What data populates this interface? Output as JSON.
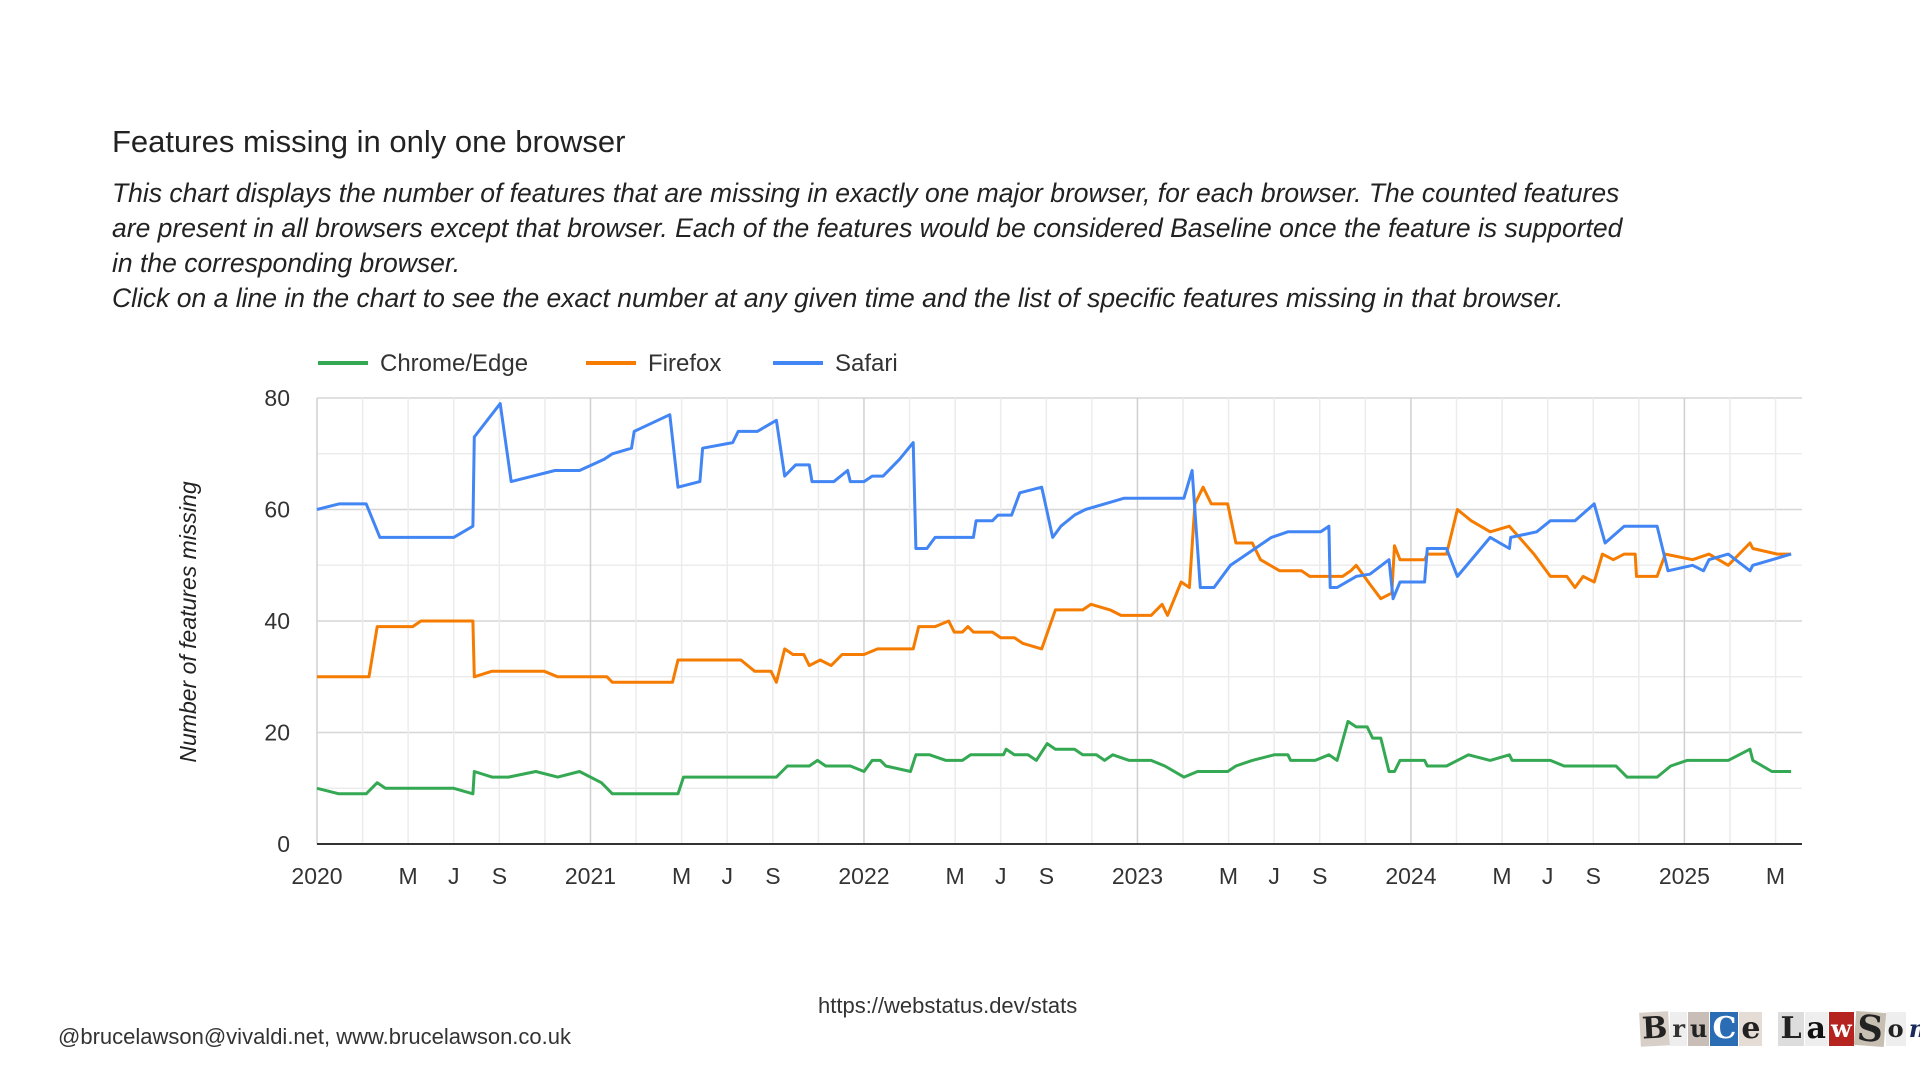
{
  "title": "Features missing in only one browser",
  "description": [
    "This chart displays the number of features that are missing in exactly one major browser, for each browser. The counted features",
    "are present in all browsers except that browser. Each of the features would be considered Baseline once the feature is supported",
    "in the corresponding browser.",
    "Click on a line in the chart to see the exact number at any given time and the list of specific features missing in that browser."
  ],
  "footer": {
    "url": "https://webstatus.dev/stats",
    "contact": "@brucelawson@vivaldi.net,  www.brucelawson.co.uk",
    "logo_text": "Bruce Lawson"
  },
  "chart_data": {
    "type": "line",
    "title": "Features missing in only one browser",
    "xlabel": "",
    "ylabel": "Number of features missing",
    "ylim": [
      0,
      80
    ],
    "xlim": [
      2020.0,
      2025.43
    ],
    "yticks": [
      "0",
      "20",
      "40",
      "60",
      "80"
    ],
    "xticks": [
      {
        "x": 2020.0,
        "label": "2020"
      },
      {
        "x": 2020.333,
        "label": "M"
      },
      {
        "x": 2020.5,
        "label": "J"
      },
      {
        "x": 2020.667,
        "label": "S"
      },
      {
        "x": 2021.0,
        "label": "2021"
      },
      {
        "x": 2021.333,
        "label": "M"
      },
      {
        "x": 2021.5,
        "label": "J"
      },
      {
        "x": 2021.667,
        "label": "S"
      },
      {
        "x": 2022.0,
        "label": "2022"
      },
      {
        "x": 2022.333,
        "label": "M"
      },
      {
        "x": 2022.5,
        "label": "J"
      },
      {
        "x": 2022.667,
        "label": "S"
      },
      {
        "x": 2023.0,
        "label": "2023"
      },
      {
        "x": 2023.333,
        "label": "M"
      },
      {
        "x": 2023.5,
        "label": "J"
      },
      {
        "x": 2023.667,
        "label": "S"
      },
      {
        "x": 2024.0,
        "label": "2024"
      },
      {
        "x": 2024.333,
        "label": "M"
      },
      {
        "x": 2024.5,
        "label": "J"
      },
      {
        "x": 2024.667,
        "label": "S"
      },
      {
        "x": 2025.0,
        "label": "2025"
      },
      {
        "x": 2025.333,
        "label": "M"
      }
    ],
    "legend_position": "top-left",
    "grid": true,
    "series": [
      {
        "name": "Chrome/Edge",
        "color": "#34a853",
        "points": [
          [
            2020.0,
            10
          ],
          [
            2020.08,
            9
          ],
          [
            2020.18,
            9
          ],
          [
            2020.22,
            11
          ],
          [
            2020.25,
            10
          ],
          [
            2020.5,
            10
          ],
          [
            2020.57,
            9
          ],
          [
            2020.575,
            13
          ],
          [
            2020.64,
            12
          ],
          [
            2020.7,
            12
          ],
          [
            2020.8,
            13
          ],
          [
            2020.88,
            12
          ],
          [
            2020.96,
            13
          ],
          [
            2021.04,
            11
          ],
          [
            2021.08,
            9
          ],
          [
            2021.32,
            9
          ],
          [
            2021.34,
            12
          ],
          [
            2021.68,
            12
          ],
          [
            2021.72,
            14
          ],
          [
            2021.8,
            14
          ],
          [
            2021.83,
            15
          ],
          [
            2021.86,
            14
          ],
          [
            2021.95,
            14
          ],
          [
            2022.0,
            13
          ],
          [
            2022.03,
            15
          ],
          [
            2022.06,
            15
          ],
          [
            2022.08,
            14
          ],
          [
            2022.17,
            13
          ],
          [
            2022.19,
            16
          ],
          [
            2022.24,
            16
          ],
          [
            2022.3,
            15
          ],
          [
            2022.36,
            15
          ],
          [
            2022.39,
            16
          ],
          [
            2022.51,
            16
          ],
          [
            2022.52,
            17
          ],
          [
            2022.55,
            16
          ],
          [
            2022.6,
            16
          ],
          [
            2022.63,
            15
          ],
          [
            2022.67,
            18
          ],
          [
            2022.7,
            17
          ],
          [
            2022.77,
            17
          ],
          [
            2022.8,
            16
          ],
          [
            2022.85,
            16
          ],
          [
            2022.88,
            15
          ],
          [
            2022.91,
            16
          ],
          [
            2022.97,
            15
          ],
          [
            2023.05,
            15
          ],
          [
            2023.1,
            14
          ],
          [
            2023.17,
            12
          ],
          [
            2023.22,
            13
          ],
          [
            2023.33,
            13
          ],
          [
            2023.36,
            14
          ],
          [
            2023.42,
            15
          ],
          [
            2023.5,
            16
          ],
          [
            2023.55,
            16
          ],
          [
            2023.56,
            15
          ],
          [
            2023.65,
            15
          ],
          [
            2023.7,
            16
          ],
          [
            2023.73,
            15
          ],
          [
            2023.77,
            22
          ],
          [
            2023.8,
            21
          ],
          [
            2023.84,
            21
          ],
          [
            2023.86,
            19
          ],
          [
            2023.89,
            19
          ],
          [
            2023.92,
            13
          ],
          [
            2023.94,
            13
          ],
          [
            2023.96,
            15
          ],
          [
            2024.05,
            15
          ],
          [
            2024.06,
            14
          ],
          [
            2024.13,
            14
          ],
          [
            2024.21,
            16
          ],
          [
            2024.29,
            15
          ],
          [
            2024.36,
            16
          ],
          [
            2024.37,
            15
          ],
          [
            2024.51,
            15
          ],
          [
            2024.56,
            14
          ],
          [
            2024.75,
            14
          ],
          [
            2024.79,
            12
          ],
          [
            2024.9,
            12
          ],
          [
            2024.95,
            14
          ],
          [
            2025.01,
            15
          ],
          [
            2025.16,
            15
          ],
          [
            2025.24,
            17
          ],
          [
            2025.25,
            15
          ],
          [
            2025.32,
            13
          ],
          [
            2025.39,
            13
          ]
        ]
      },
      {
        "name": "Firefox",
        "color": "#f57c00",
        "points": [
          [
            2020.0,
            30
          ],
          [
            2020.19,
            30
          ],
          [
            2020.22,
            39
          ],
          [
            2020.35,
            39
          ],
          [
            2020.38,
            40
          ],
          [
            2020.57,
            40
          ],
          [
            2020.575,
            30
          ],
          [
            2020.64,
            31
          ],
          [
            2020.83,
            31
          ],
          [
            2020.88,
            30
          ],
          [
            2021.06,
            30
          ],
          [
            2021.08,
            29
          ],
          [
            2021.3,
            29
          ],
          [
            2021.32,
            33
          ],
          [
            2021.55,
            33
          ],
          [
            2021.6,
            31
          ],
          [
            2021.66,
            31
          ],
          [
            2021.68,
            29
          ],
          [
            2021.71,
            35
          ],
          [
            2021.74,
            34
          ],
          [
            2021.78,
            34
          ],
          [
            2021.8,
            32
          ],
          [
            2021.84,
            33
          ],
          [
            2021.88,
            32
          ],
          [
            2021.92,
            34
          ],
          [
            2022.0,
            34
          ],
          [
            2022.05,
            35
          ],
          [
            2022.18,
            35
          ],
          [
            2022.2,
            39
          ],
          [
            2022.26,
            39
          ],
          [
            2022.31,
            40
          ],
          [
            2022.33,
            38
          ],
          [
            2022.36,
            38
          ],
          [
            2022.38,
            39
          ],
          [
            2022.4,
            38
          ],
          [
            2022.47,
            38
          ],
          [
            2022.5,
            37
          ],
          [
            2022.55,
            37
          ],
          [
            2022.58,
            36
          ],
          [
            2022.65,
            35
          ],
          [
            2022.7,
            42
          ],
          [
            2022.8,
            42
          ],
          [
            2022.83,
            43
          ],
          [
            2022.9,
            42
          ],
          [
            2022.94,
            41
          ],
          [
            2023.05,
            41
          ],
          [
            2023.09,
            43
          ],
          [
            2023.11,
            41
          ],
          [
            2023.16,
            47
          ],
          [
            2023.19,
            46
          ],
          [
            2023.21,
            61
          ],
          [
            2023.24,
            64
          ],
          [
            2023.27,
            61
          ],
          [
            2023.33,
            61
          ],
          [
            2023.36,
            54
          ],
          [
            2023.42,
            54
          ],
          [
            2023.45,
            51
          ],
          [
            2023.52,
            49
          ],
          [
            2023.6,
            49
          ],
          [
            2023.63,
            48
          ],
          [
            2023.75,
            48
          ],
          [
            2023.78,
            49
          ],
          [
            2023.8,
            50
          ],
          [
            2023.85,
            46.6
          ],
          [
            2023.89,
            44
          ],
          [
            2023.93,
            45
          ],
          [
            2023.94,
            53.5
          ],
          [
            2023.96,
            51
          ],
          [
            2024.05,
            51
          ],
          [
            2024.06,
            52
          ],
          [
            2024.13,
            52
          ],
          [
            2024.17,
            60
          ],
          [
            2024.22,
            58
          ],
          [
            2024.29,
            56
          ],
          [
            2024.36,
            57
          ],
          [
            2024.45,
            52
          ],
          [
            2024.51,
            48
          ],
          [
            2024.57,
            48
          ],
          [
            2024.6,
            46
          ],
          [
            2024.63,
            48
          ],
          [
            2024.67,
            47
          ],
          [
            2024.7,
            52
          ],
          [
            2024.74,
            51
          ],
          [
            2024.78,
            52
          ],
          [
            2024.82,
            52
          ],
          [
            2024.825,
            48
          ],
          [
            2024.9,
            48
          ],
          [
            2024.93,
            52
          ],
          [
            2025.03,
            51
          ],
          [
            2025.09,
            52
          ],
          [
            2025.16,
            50
          ],
          [
            2025.24,
            54
          ],
          [
            2025.25,
            53
          ],
          [
            2025.34,
            52
          ],
          [
            2025.39,
            52
          ]
        ]
      },
      {
        "name": "Safari",
        "color": "#4285f4",
        "points": [
          [
            2020.0,
            60
          ],
          [
            2020.08,
            61
          ],
          [
            2020.18,
            61
          ],
          [
            2020.23,
            55
          ],
          [
            2020.5,
            55
          ],
          [
            2020.57,
            57
          ],
          [
            2020.575,
            73
          ],
          [
            2020.67,
            79
          ],
          [
            2020.71,
            65
          ],
          [
            2020.87,
            67
          ],
          [
            2020.96,
            67
          ],
          [
            2021.05,
            69
          ],
          [
            2021.08,
            70
          ],
          [
            2021.15,
            71
          ],
          [
            2021.16,
            74
          ],
          [
            2021.29,
            77
          ],
          [
            2021.32,
            64
          ],
          [
            2021.4,
            65
          ],
          [
            2021.41,
            71
          ],
          [
            2021.52,
            72
          ],
          [
            2021.54,
            74
          ],
          [
            2021.61,
            74
          ],
          [
            2021.68,
            76
          ],
          [
            2021.71,
            66
          ],
          [
            2021.75,
            68
          ],
          [
            2021.8,
            68
          ],
          [
            2021.81,
            65
          ],
          [
            2021.89,
            65
          ],
          [
            2021.94,
            67
          ],
          [
            2021.95,
            65
          ],
          [
            2022.0,
            65
          ],
          [
            2022.03,
            66
          ],
          [
            2022.07,
            66
          ],
          [
            2022.13,
            69
          ],
          [
            2022.18,
            72
          ],
          [
            2022.19,
            53
          ],
          [
            2022.23,
            53
          ],
          [
            2022.26,
            55
          ],
          [
            2022.4,
            55
          ],
          [
            2022.41,
            58
          ],
          [
            2022.47,
            58
          ],
          [
            2022.49,
            59
          ],
          [
            2022.54,
            59
          ],
          [
            2022.57,
            63
          ],
          [
            2022.65,
            64
          ],
          [
            2022.69,
            55
          ],
          [
            2022.72,
            57
          ],
          [
            2022.77,
            59
          ],
          [
            2022.81,
            60
          ],
          [
            2022.88,
            61
          ],
          [
            2022.95,
            62
          ],
          [
            2023.17,
            62
          ],
          [
            2023.2,
            67
          ],
          [
            2023.23,
            46
          ],
          [
            2023.28,
            46
          ],
          [
            2023.34,
            50
          ],
          [
            2023.37,
            51
          ],
          [
            2023.49,
            55
          ],
          [
            2023.55,
            56
          ],
          [
            2023.67,
            56
          ],
          [
            2023.7,
            57
          ],
          [
            2023.705,
            46
          ],
          [
            2023.73,
            46
          ],
          [
            2023.8,
            48
          ],
          [
            2023.85,
            48.4
          ],
          [
            2023.92,
            51
          ],
          [
            2023.935,
            44
          ],
          [
            2023.96,
            47
          ],
          [
            2024.05,
            47
          ],
          [
            2024.06,
            53
          ],
          [
            2024.13,
            53
          ],
          [
            2024.17,
            48
          ],
          [
            2024.29,
            55
          ],
          [
            2024.36,
            53
          ],
          [
            2024.365,
            55
          ],
          [
            2024.46,
            56
          ],
          [
            2024.51,
            58
          ],
          [
            2024.6,
            58
          ],
          [
            2024.67,
            61
          ],
          [
            2024.71,
            54
          ],
          [
            2024.78,
            57
          ],
          [
            2024.9,
            57
          ],
          [
            2024.94,
            49
          ],
          [
            2025.03,
            50
          ],
          [
            2025.07,
            49
          ],
          [
            2025.09,
            51
          ],
          [
            2025.16,
            52
          ],
          [
            2025.24,
            49
          ],
          [
            2025.25,
            50
          ],
          [
            2025.39,
            52
          ]
        ]
      }
    ]
  }
}
